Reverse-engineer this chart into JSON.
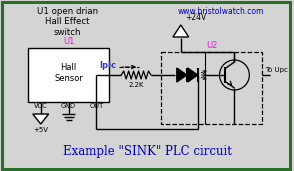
{
  "bg_color": "#d4d4d4",
  "border_color": "#2a6e2a",
  "title_text": "U1 open drian\nHall Effect\nswitch",
  "website": "www.bristolwatch.com",
  "example_label": "Example \"SINK\" PLC circuit",
  "u1_label": "U1",
  "u2_label": "U2",
  "hall_sensor_text": "Hall\nSensor",
  "vcc_label": "VCC",
  "gnd_label": "GND",
  "out_label": "OUT",
  "plus5v_label": "+5V",
  "plus24v_label": "+24V",
  "iplc_label": "Iplc",
  "resistor_label": "2.2K",
  "to_upc_label": "To Upc",
  "magenta": "#ff00ff",
  "blue_dark": "#0000bb",
  "blue_label": "#3333cc",
  "black": "#000000",
  "white": "#ffffff",
  "gray_box": "#d4d4d4"
}
